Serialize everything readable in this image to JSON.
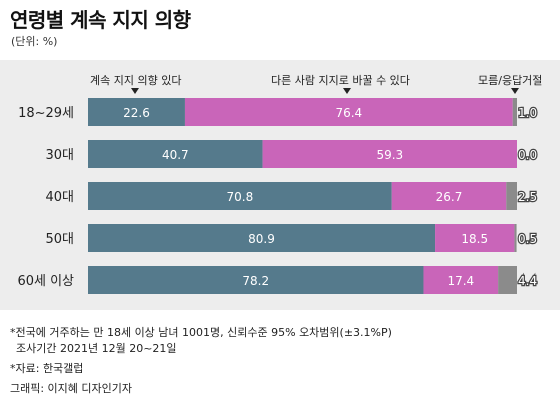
{
  "title": "연령별 계속 지지 의향",
  "unit": "(단위: %)",
  "chart_data": {
    "type": "bar",
    "orientation": "horizontal",
    "stacked": true,
    "categories": [
      "18~29세",
      "30대",
      "40대",
      "50대",
      "60세 이상"
    ],
    "series": [
      {
        "name": "계속 지지 의향 있다",
        "values": [
          22.6,
          40.7,
          70.8,
          80.9,
          78.2
        ],
        "color": "#557a8c"
      },
      {
        "name": "다른 사람 지지로 바꿀 수 있다",
        "values": [
          76.4,
          59.3,
          26.7,
          18.5,
          17.4
        ],
        "color": "#c965b9"
      },
      {
        "name": "모름/응답거절",
        "values": [
          1.0,
          0.0,
          2.5,
          0.5,
          4.4
        ],
        "color": "#8b8b8b"
      }
    ],
    "value_labels": [
      [
        "22.6",
        "40.7",
        "70.8",
        "80.9",
        "78.2"
      ],
      [
        "76.4",
        "59.3",
        "26.7",
        "18.5",
        "17.4"
      ],
      [
        "1.0",
        "0.0",
        "2.5",
        "0.5",
        "4.4"
      ]
    ],
    "xlim": [
      0,
      100
    ],
    "legend_placement": "top, above bars"
  },
  "notes": [
    "*전국에 거주하는 만 18세 이상 남녀 1001명, 신뢰수준 95% 오차범위(±3.1%P)",
    "조사기간 2021년 12월 20~21일",
    "*자료: 한국갤럽",
    "그래픽: 이지혜 디자인기자"
  ]
}
